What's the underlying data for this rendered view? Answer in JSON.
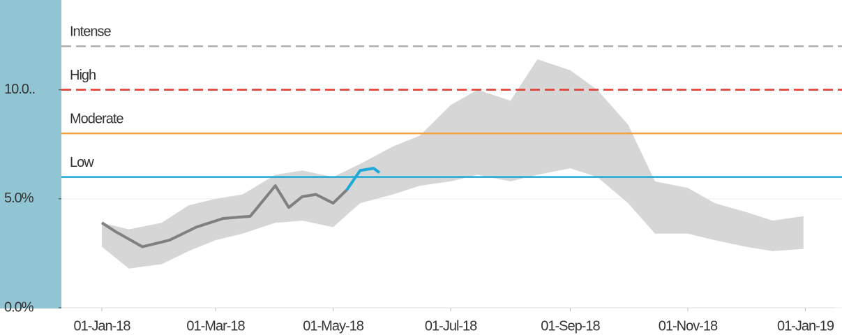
{
  "chart_data": {
    "type": "band-line",
    "ylim": [
      0,
      13.8
    ],
    "yticks": [
      {
        "value": 0,
        "label": "0.0%"
      },
      {
        "value": 5,
        "label": "5.0%"
      },
      {
        "value": 10,
        "label": "10.0.."
      }
    ],
    "xlim": [
      "2017-12-11",
      "2019-01-20"
    ],
    "xticks": [
      {
        "value": "2018-01-01",
        "label": "01-Jan-18"
      },
      {
        "value": "2018-03-01",
        "label": "01-Mar-18"
      },
      {
        "value": "2018-05-01",
        "label": "01-May-18"
      },
      {
        "value": "2018-07-01",
        "label": "01-Jul-18"
      },
      {
        "value": "2018-09-01",
        "label": "01-Sep-18"
      },
      {
        "value": "2018-11-01",
        "label": "01-Nov-18"
      },
      {
        "value": "2019-01-01",
        "label": "01-Jan-19"
      }
    ],
    "grid": true,
    "thresholds": [
      {
        "label": "Intense",
        "value": 12,
        "color": "#b0b0b0",
        "style": "dashed"
      },
      {
        "label": "High",
        "value": 10,
        "color": "#e03a2f",
        "style": "dashed"
      },
      {
        "label": "Moderate",
        "value": 8,
        "color": "#f0a23c",
        "style": "solid"
      },
      {
        "label": "Low",
        "value": 6,
        "color": "#1ba9d8",
        "style": "solid"
      }
    ],
    "band": {
      "color": "#d6d6d6",
      "x": [
        "2018-01-01",
        "2018-01-15",
        "2018-02-01",
        "2018-02-15",
        "2018-03-01",
        "2018-03-15",
        "2018-04-01",
        "2018-04-15",
        "2018-05-01",
        "2018-05-15",
        "2018-06-01",
        "2018-06-15",
        "2018-07-01",
        "2018-07-15",
        "2018-08-01",
        "2018-08-15",
        "2018-09-01",
        "2018-09-15",
        "2018-10-01",
        "2018-10-15",
        "2018-11-01",
        "2018-11-15",
        "2018-12-01",
        "2018-12-15",
        "2018-12-31"
      ],
      "upper": [
        3.9,
        3.6,
        3.9,
        4.7,
        5.0,
        5.2,
        6.1,
        6.3,
        6.0,
        6.6,
        7.4,
        7.9,
        9.3,
        10.0,
        9.5,
        11.4,
        10.9,
        10.0,
        8.4,
        5.8,
        5.5,
        4.8,
        4.4,
        4.0,
        4.2
      ],
      "lower": [
        2.8,
        1.8,
        2.0,
        2.6,
        3.1,
        3.4,
        3.9,
        4.0,
        3.7,
        4.8,
        5.2,
        5.6,
        5.8,
        6.1,
        5.8,
        6.1,
        6.4,
        6.0,
        4.8,
        3.4,
        3.4,
        3.1,
        2.8,
        2.6,
        2.7
      ]
    },
    "series": [
      {
        "color": "#808080",
        "x": [
          "2018-01-01",
          "2018-01-08",
          "2018-01-22",
          "2018-02-05",
          "2018-02-19",
          "2018-03-05",
          "2018-03-19",
          "2018-04-01",
          "2018-04-08",
          "2018-04-15",
          "2018-04-22",
          "2018-05-01",
          "2018-05-08"
        ],
        "values": [
          3.9,
          3.5,
          2.8,
          3.1,
          3.7,
          4.1,
          4.2,
          5.6,
          4.6,
          5.1,
          5.2,
          4.8,
          5.4
        ]
      },
      {
        "color": "#1ba9d8",
        "x": [
          "2018-05-08",
          "2018-05-15",
          "2018-05-22",
          "2018-05-25"
        ],
        "values": [
          5.4,
          6.3,
          6.4,
          6.2
        ]
      }
    ]
  }
}
